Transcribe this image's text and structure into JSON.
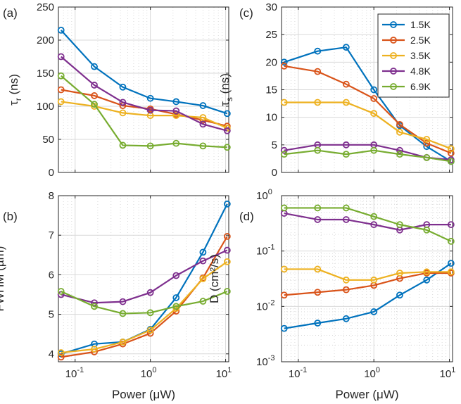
{
  "colors": {
    "1.5K": "#0072BD",
    "2.5K": "#D95319",
    "3.5K": "#EDB120",
    "4.8K": "#7E2F8E",
    "6.9K": "#77AC30",
    "axis": "#262626",
    "grid": "#d9d9d9"
  },
  "legend": {
    "entries": [
      "1.5K",
      "2.5K",
      "3.5K",
      "4.8K",
      "6.9K"
    ],
    "placement": "top-right of panel (c)"
  },
  "chart_data": [
    {
      "panel_label": "(a)",
      "type": "line",
      "xscale": "log",
      "xlim": [
        0.06,
        11
      ],
      "yscale": "linear",
      "ylim": [
        0,
        250
      ],
      "ylabel": "τ_r (ns)",
      "ylabel_main": "τ",
      "ylabel_sub": "r",
      "ylabel_rest": " (ns)",
      "xlabel": "",
      "yticks": [
        0,
        50,
        100,
        150,
        200,
        250
      ],
      "ytick_labels": [
        "0",
        "50",
        "100",
        "150",
        "200",
        "250"
      ],
      "xticks": [
        0.1,
        1,
        10
      ],
      "xtick_labels": [],
      "grid": true,
      "x": [
        0.065,
        0.18,
        0.43,
        1.0,
        2.2,
        5.0,
        10.5
      ],
      "series": [
        {
          "name": "1.5K",
          "values": [
            215,
            160,
            129,
            112,
            107,
            101,
            89
          ]
        },
        {
          "name": "2.5K",
          "values": [
            125,
            116,
            101,
            96,
            88,
            79,
            70
          ]
        },
        {
          "name": "3.5K",
          "values": [
            107,
            100,
            90,
            86,
            86,
            83,
            67
          ]
        },
        {
          "name": "4.8K",
          "values": [
            175,
            132,
            106,
            94,
            93,
            73,
            63
          ]
        },
        {
          "name": "6.9K",
          "values": [
            146,
            103,
            41,
            40,
            44,
            40,
            38
          ]
        }
      ]
    },
    {
      "panel_label": "(c)",
      "type": "line",
      "xscale": "log",
      "xlim": [
        0.06,
        11
      ],
      "yscale": "linear",
      "ylim": [
        0,
        30
      ],
      "ylabel": "τ_s (ns)",
      "ylabel_main": "τ",
      "ylabel_sub": "s",
      "ylabel_rest": " (ns)",
      "xlabel": "",
      "yticks": [
        0,
        5,
        10,
        15,
        20,
        25,
        30
      ],
      "ytick_labels": [
        "0",
        "5",
        "10",
        "15",
        "20",
        "25",
        "30"
      ],
      "xticks": [
        0.1,
        1,
        10
      ],
      "xtick_labels": [],
      "grid": true,
      "x": [
        0.065,
        0.18,
        0.43,
        1.0,
        2.2,
        5.0,
        10.5
      ],
      "series": [
        {
          "name": "1.5K",
          "values": [
            20,
            22,
            22.7,
            15,
            8.5,
            4.7,
            2.0
          ]
        },
        {
          "name": "2.5K",
          "values": [
            19.3,
            18.3,
            16,
            13.4,
            8.7,
            5.3,
            3.5
          ]
        },
        {
          "name": "3.5K",
          "values": [
            12.7,
            12.7,
            12.7,
            10.7,
            7.3,
            6,
            4.3
          ]
        },
        {
          "name": "4.8K",
          "values": [
            4,
            5,
            5,
            5,
            4,
            2.7,
            2.3
          ]
        },
        {
          "name": "6.9K",
          "values": [
            3.3,
            4,
            3.3,
            4,
            3.3,
            2.7,
            2
          ]
        }
      ]
    },
    {
      "panel_label": "(b)",
      "type": "line",
      "xscale": "log",
      "xlim": [
        0.06,
        11
      ],
      "yscale": "linear",
      "ylim": [
        3.8,
        8
      ],
      "ylabel": "FWHM (µm)",
      "ylabel_main": "FWHM (µm)",
      "ylabel_sub": "",
      "ylabel_rest": "",
      "xlabel": "Power (μW)",
      "yticks": [
        4,
        5,
        6,
        7,
        8
      ],
      "ytick_labels": [
        "4",
        "5",
        "6",
        "7",
        "8"
      ],
      "xticks": [
        0.1,
        1,
        10
      ],
      "xtick_labels": [
        "10",
        "10",
        "10"
      ],
      "xtick_exps": [
        "-1",
        "0",
        "1"
      ],
      "grid": true,
      "x": [
        0.065,
        0.18,
        0.43,
        1.0,
        2.2,
        5.0,
        10.5
      ],
      "series": [
        {
          "name": "1.5K",
          "values": [
            4.0,
            4.25,
            4.3,
            4.62,
            5.42,
            6.57,
            7.79
          ]
        },
        {
          "name": "2.5K",
          "values": [
            3.92,
            4.05,
            4.25,
            4.52,
            5.08,
            5.92,
            6.97
          ]
        },
        {
          "name": "3.5K",
          "values": [
            4.03,
            4.12,
            4.3,
            4.6,
            5.15,
            5.9,
            6.33
          ]
        },
        {
          "name": "4.8K",
          "values": [
            5.5,
            5.29,
            5.32,
            5.55,
            5.98,
            6.35,
            6.62
          ]
        },
        {
          "name": "6.9K",
          "values": [
            5.58,
            5.2,
            5.02,
            5.04,
            5.2,
            5.33,
            5.58
          ]
        }
      ]
    },
    {
      "panel_label": "(d)",
      "type": "line",
      "xscale": "log",
      "xlim": [
        0.06,
        11
      ],
      "yscale": "log",
      "ylim": [
        0.001,
        1
      ],
      "ylabel": "D (cm²/s)",
      "ylabel_main": "D (cm²/s)",
      "ylabel_sub": "",
      "ylabel_rest": "",
      "xlabel": "Power (μW)",
      "yticks": [
        0.001,
        0.01,
        0.1,
        1
      ],
      "ytick_labels": [
        "10",
        "10",
        "10",
        "10"
      ],
      "ytick_exps": [
        "-3",
        "-2",
        "-1",
        "0"
      ],
      "xticks": [
        0.1,
        1,
        10
      ],
      "xtick_labels": [
        "10",
        "10",
        "10"
      ],
      "xtick_exps": [
        "-1",
        "0",
        "1"
      ],
      "grid": true,
      "x": [
        0.065,
        0.18,
        0.43,
        1.0,
        2.2,
        5.0,
        10.5
      ],
      "series": [
        {
          "name": "1.5K",
          "values": [
            0.004,
            0.005,
            0.006,
            0.008,
            0.016,
            0.03,
            0.06
          ]
        },
        {
          "name": "2.5K",
          "values": [
            0.016,
            0.018,
            0.02,
            0.024,
            0.032,
            0.04,
            0.04
          ]
        },
        {
          "name": "3.5K",
          "values": [
            0.047,
            0.047,
            0.03,
            0.03,
            0.04,
            0.042,
            0.042
          ]
        },
        {
          "name": "4.8K",
          "values": [
            0.48,
            0.37,
            0.37,
            0.3,
            0.24,
            0.3,
            0.3
          ]
        },
        {
          "name": "6.9K",
          "values": [
            0.6,
            0.6,
            0.6,
            0.42,
            0.3,
            0.24,
            0.15
          ]
        }
      ]
    }
  ]
}
